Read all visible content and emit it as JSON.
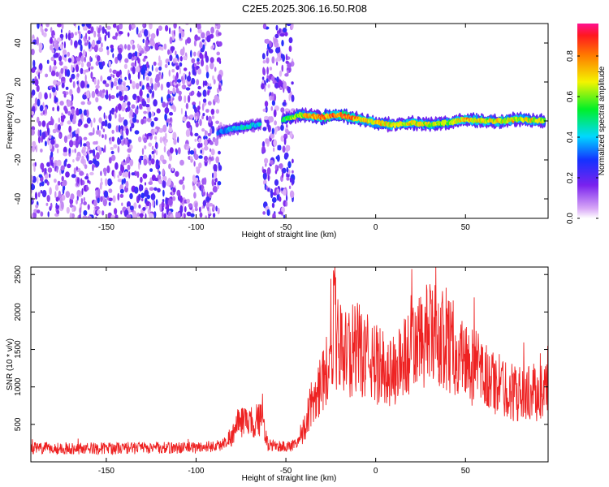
{
  "title": "C2E5.2025.306.16.50.R08",
  "colors": {
    "snr_line": "#ee2222",
    "scatter_noise": "#7722ee",
    "frame": "#000000"
  },
  "chart_data": [
    {
      "type": "heatmap",
      "name": "spectrogram",
      "xlabel": "Height of straight line (km)",
      "ylabel": "Frequency (Hz)",
      "xlim": [
        -192,
        96
      ],
      "ylim": [
        -50,
        50
      ],
      "xticks": [
        -150,
        -100,
        -50,
        0,
        50
      ],
      "yticks": [
        -40,
        -20,
        0,
        20,
        40
      ],
      "noise_regions": [
        [
          -192,
          -86
        ],
        [
          -63,
          -46
        ]
      ],
      "signal_track": [
        {
          "x": -88,
          "freq": -6,
          "amp": 0.35
        },
        {
          "x": -80,
          "freq": -4,
          "amp": 0.45
        },
        {
          "x": -72,
          "freq": -3,
          "amp": 0.5
        },
        {
          "x": -66,
          "freq": -2,
          "amp": 0.45
        },
        {
          "x": -50,
          "freq": 1,
          "amp": 0.6
        },
        {
          "x": -42,
          "freq": 3,
          "amp": 0.75
        },
        {
          "x": -30,
          "freq": 2,
          "amp": 0.9
        },
        {
          "x": -20,
          "freq": 3,
          "amp": 0.95
        },
        {
          "x": -10,
          "freq": 1,
          "amp": 0.85
        },
        {
          "x": 0,
          "freq": -1,
          "amp": 0.8
        },
        {
          "x": 10,
          "freq": -2,
          "amp": 0.75
        },
        {
          "x": 20,
          "freq": -1,
          "amp": 0.8
        },
        {
          "x": 30,
          "freq": -2,
          "amp": 0.75
        },
        {
          "x": 40,
          "freq": -1,
          "amp": 0.7
        },
        {
          "x": 50,
          "freq": 1,
          "amp": 0.85
        },
        {
          "x": 60,
          "freq": 0,
          "amp": 0.75
        },
        {
          "x": 70,
          "freq": 0,
          "amp": 0.8
        },
        {
          "x": 80,
          "freq": 1,
          "amp": 0.8
        },
        {
          "x": 94,
          "freq": 0,
          "amp": 0.75
        }
      ],
      "colorbar": {
        "label": "Normalized spectral amplitude",
        "range": [
          0,
          0.96
        ],
        "ticks": [
          "0.0",
          "0.2",
          "0.4",
          "0.6",
          "0.8"
        ]
      }
    },
    {
      "type": "line",
      "name": "snr",
      "xlabel": "Height of straight line (km)",
      "ylabel": "SNR (10 * v/v)",
      "xlim": [
        -192,
        96
      ],
      "ylim": [
        0,
        2600
      ],
      "xticks": [
        -150,
        -100,
        -50,
        0,
        50
      ],
      "yticks": [
        500,
        1000,
        1500,
        2000,
        2500
      ],
      "envelope": [
        {
          "x": -192,
          "y": 180
        },
        {
          "x": -150,
          "y": 180
        },
        {
          "x": -100,
          "y": 190
        },
        {
          "x": -86,
          "y": 220
        },
        {
          "x": -80,
          "y": 350
        },
        {
          "x": -75,
          "y": 550
        },
        {
          "x": -70,
          "y": 480
        },
        {
          "x": -66,
          "y": 600
        },
        {
          "x": -62,
          "y": 500
        },
        {
          "x": -60,
          "y": 220
        },
        {
          "x": -48,
          "y": 200
        },
        {
          "x": -42,
          "y": 300
        },
        {
          "x": -38,
          "y": 600
        },
        {
          "x": -34,
          "y": 900
        },
        {
          "x": -30,
          "y": 1100
        },
        {
          "x": -26,
          "y": 1300
        },
        {
          "x": -22,
          "y": 1600
        },
        {
          "x": -18,
          "y": 1450
        },
        {
          "x": -10,
          "y": 1500
        },
        {
          "x": 0,
          "y": 1300
        },
        {
          "x": 10,
          "y": 1200
        },
        {
          "x": 20,
          "y": 1500
        },
        {
          "x": 30,
          "y": 1700
        },
        {
          "x": 40,
          "y": 1600
        },
        {
          "x": 50,
          "y": 1350
        },
        {
          "x": 60,
          "y": 1150
        },
        {
          "x": 70,
          "y": 1000
        },
        {
          "x": 80,
          "y": 900
        },
        {
          "x": 96,
          "y": 950
        }
      ]
    }
  ]
}
